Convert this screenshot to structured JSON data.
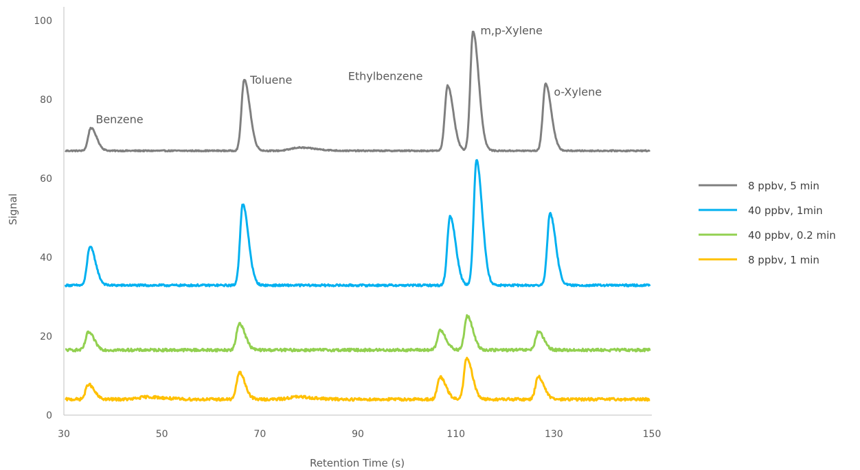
{
  "chart_data": {
    "type": "line",
    "xlabel": "Retention Time (s)",
    "ylabel": "Signal",
    "xlim": [
      30,
      150
    ],
    "ylim": [
      0,
      100
    ],
    "x_ticks": [
      30,
      50,
      70,
      90,
      110,
      130,
      150
    ],
    "y_ticks": [
      0,
      20,
      40,
      60,
      80,
      100
    ],
    "grid": false,
    "legend_position": "right",
    "series": [
      {
        "name": "8 ppbv, 5 min",
        "color": "#7f7f7f",
        "baseline": 67.0,
        "peaks": [
          {
            "x": 35.5,
            "height": 5.8
          },
          {
            "x": 66.8,
            "height": 18.0
          },
          {
            "x": 78.0,
            "height": 0.8
          },
          {
            "x": 108.3,
            "height": 16.5
          },
          {
            "x": 113.5,
            "height": 30.3
          },
          {
            "x": 128.3,
            "height": 17.0
          }
        ],
        "noise": 0.15
      },
      {
        "name": "40 ppbv, 1min",
        "color": "#00b0f0",
        "baseline": 32.9,
        "peaks": [
          {
            "x": 35.3,
            "height": 9.8
          },
          {
            "x": 66.5,
            "height": 20.5
          },
          {
            "x": 108.8,
            "height": 17.5
          },
          {
            "x": 114.2,
            "height": 31.8
          },
          {
            "x": 129.2,
            "height": 18.2
          }
        ],
        "noise": 0.25
      },
      {
        "name": "40 ppbv, 0.2 min",
        "color": "#92d050",
        "baseline": 16.5,
        "peaks": [
          {
            "x": 35.0,
            "height": 4.5
          },
          {
            "x": 65.8,
            "height": 6.8
          },
          {
            "x": 106.8,
            "height": 5.0
          },
          {
            "x": 112.3,
            "height": 8.6
          },
          {
            "x": 126.8,
            "height": 4.6
          }
        ],
        "noise": 0.35
      },
      {
        "name": "8 ppbv, 1 min",
        "color": "#ffc000",
        "baseline": 4.0,
        "peaks": [
          {
            "x": 35.0,
            "height": 3.8
          },
          {
            "x": 47.0,
            "height": 0.6
          },
          {
            "x": 65.8,
            "height": 6.8
          },
          {
            "x": 77.5,
            "height": 0.6
          },
          {
            "x": 106.8,
            "height": 5.6
          },
          {
            "x": 112.2,
            "height": 10.3
          },
          {
            "x": 126.8,
            "height": 5.8
          }
        ],
        "noise": 0.35
      }
    ],
    "annotations": [
      {
        "text": "Benzene",
        "x": 36.5,
        "y": 74
      },
      {
        "text": "Toluene",
        "x": 68.0,
        "y": 84
      },
      {
        "text": "Ethylbenzene",
        "x": 88.0,
        "y": 85
      },
      {
        "text": "m,p-Xylene",
        "x": 115.0,
        "y": 96.5
      },
      {
        "text": "o-Xylene",
        "x": 130.0,
        "y": 81
      }
    ]
  }
}
